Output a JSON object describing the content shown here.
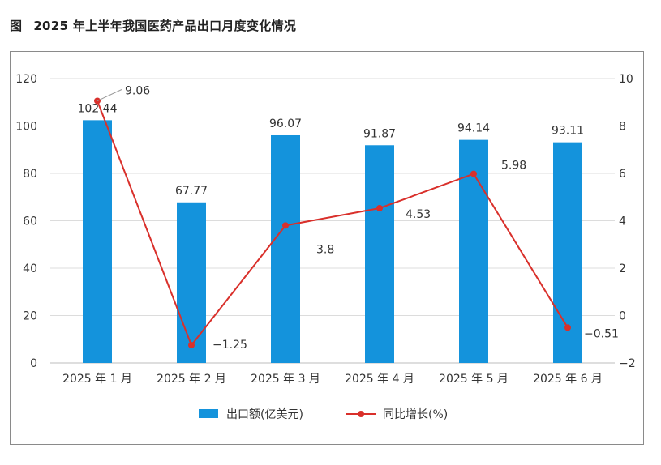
{
  "figure": {
    "label": "图",
    "title": "2025 年上半年我国医药产品出口月度变化情况"
  },
  "colors": {
    "bar": "#1493dc",
    "line": "#d9302b",
    "grid": "#dcdcdc",
    "axis_text": "#333333",
    "frame": "#8a8a8a"
  },
  "chart_data": {
    "type": "bar",
    "categories": [
      "2025 年 1 月",
      "2025 年 2 月",
      "2025 年 3 月",
      "2025 年 4 月",
      "2025 年 5 月",
      "2025 年 6 月"
    ],
    "series": [
      {
        "name": "出口额(亿美元)",
        "type": "bar",
        "axis": "left",
        "values": [
          102.44,
          67.77,
          96.07,
          91.87,
          94.14,
          93.11
        ],
        "labels": [
          "102.44",
          "67.77",
          "96.07",
          "91.87",
          "94.14",
          "93.11"
        ]
      },
      {
        "name": "同比增长(%)",
        "type": "line",
        "axis": "right",
        "values": [
          9.06,
          -1.25,
          3.8,
          4.53,
          5.98,
          -0.51
        ],
        "labels": [
          "9.06",
          "−1.25",
          "3.8",
          "4.53",
          "5.98",
          "−0.51"
        ]
      }
    ],
    "left_axis": {
      "min": 0,
      "max": 120,
      "ticks": [
        0,
        20,
        40,
        60,
        80,
        100,
        120
      ]
    },
    "right_axis": {
      "min": -2,
      "max": 10,
      "ticks": [
        -2,
        0,
        2,
        4,
        6,
        8,
        10
      ],
      "tick_labels": [
        "−2",
        "0",
        "2",
        "4",
        "6",
        "8",
        "10"
      ]
    },
    "grid": true,
    "legend_position": "bottom-center"
  }
}
